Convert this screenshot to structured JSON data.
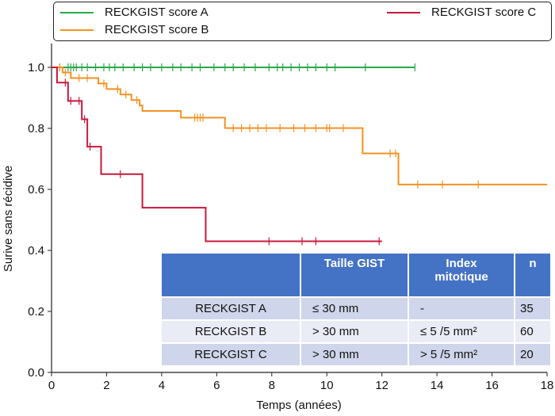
{
  "chart_data": {
    "type": "line",
    "xlabel": "Temps (années)",
    "ylabel": "Surive sans récidive",
    "xlim": [
      0,
      18
    ],
    "ylim": [
      0,
      1
    ],
    "xticks": [
      "0",
      "2",
      "4",
      "6",
      "8",
      "10",
      "12",
      "14",
      "16",
      "18"
    ],
    "yticks": [
      "0.0",
      "0.2",
      "0.4",
      "0.6",
      "0.8",
      "1.0"
    ],
    "legend": "top",
    "series": [
      {
        "name": "RECKGIST score A",
        "color": "#2aa84a",
        "steps": [
          [
            0,
            1.0
          ],
          [
            13.2,
            1.0
          ]
        ],
        "censors": [
          0.3,
          0.6,
          0.7,
          0.8,
          0.9,
          1.1,
          1.3,
          1.6,
          1.9,
          2.1,
          2.3,
          2.6,
          3.0,
          3.3,
          3.6,
          4.0,
          4.4,
          4.7,
          5.1,
          5.4,
          5.9,
          6.3,
          6.6,
          7.0,
          7.4,
          7.9,
          8.2,
          8.4,
          8.7,
          9.0,
          9.3,
          9.6,
          10.0,
          10.3,
          11.4,
          13.2
        ]
      },
      {
        "name": "RECKGIST score B",
        "color": "#f39220",
        "steps": [
          [
            0,
            1.0
          ],
          [
            0.4,
            0.983
          ],
          [
            0.7,
            0.965
          ],
          [
            1.7,
            0.947
          ],
          [
            2.0,
            0.929
          ],
          [
            2.5,
            0.911
          ],
          [
            2.9,
            0.893
          ],
          [
            3.2,
            0.875
          ],
          [
            3.3,
            0.857
          ],
          [
            4.7,
            0.835
          ],
          [
            6.3,
            0.801
          ],
          [
            11.3,
            0.718
          ],
          [
            12.6,
            0.616
          ],
          [
            18,
            0.616
          ]
        ],
        "censors": [
          0.3,
          0.5,
          1.0,
          1.3,
          1.9,
          2.4,
          2.7,
          3.1,
          5.2,
          5.3,
          5.4,
          5.5,
          6.6,
          6.9,
          7.2,
          7.5,
          7.8,
          8.3,
          8.8,
          9.2,
          9.6,
          10.0,
          10.1,
          10.6,
          12.3,
          12.5,
          13.3,
          14.2,
          15.5
        ]
      },
      {
        "name": "RECKGIST score C",
        "color": "#c8193c",
        "steps": [
          [
            0,
            1.0
          ],
          [
            0.2,
            0.95
          ],
          [
            0.6,
            0.89
          ],
          [
            1.1,
            0.83
          ],
          [
            1.3,
            0.74
          ],
          [
            1.8,
            0.65
          ],
          [
            3.3,
            0.54
          ],
          [
            5.6,
            0.43
          ],
          [
            12.0,
            0.43
          ]
        ],
        "censors": [
          0.5,
          0.7,
          1.0,
          1.2,
          1.4,
          2.5,
          7.9,
          9.1,
          9.6,
          11.9
        ]
      }
    ]
  },
  "table": {
    "headers": [
      "",
      "Taille GIST",
      "Index\nmitotique",
      "n"
    ],
    "rows": [
      [
        "RECKGIST A",
        "≤ 30 mm",
        "-",
        "35"
      ],
      [
        "RECKGIST B",
        "> 30 mm",
        "≤ 5 /5 mm²",
        "60"
      ],
      [
        "RECKGIST C",
        "> 30 mm",
        "> 5 /5 mm²",
        "20"
      ]
    ]
  }
}
